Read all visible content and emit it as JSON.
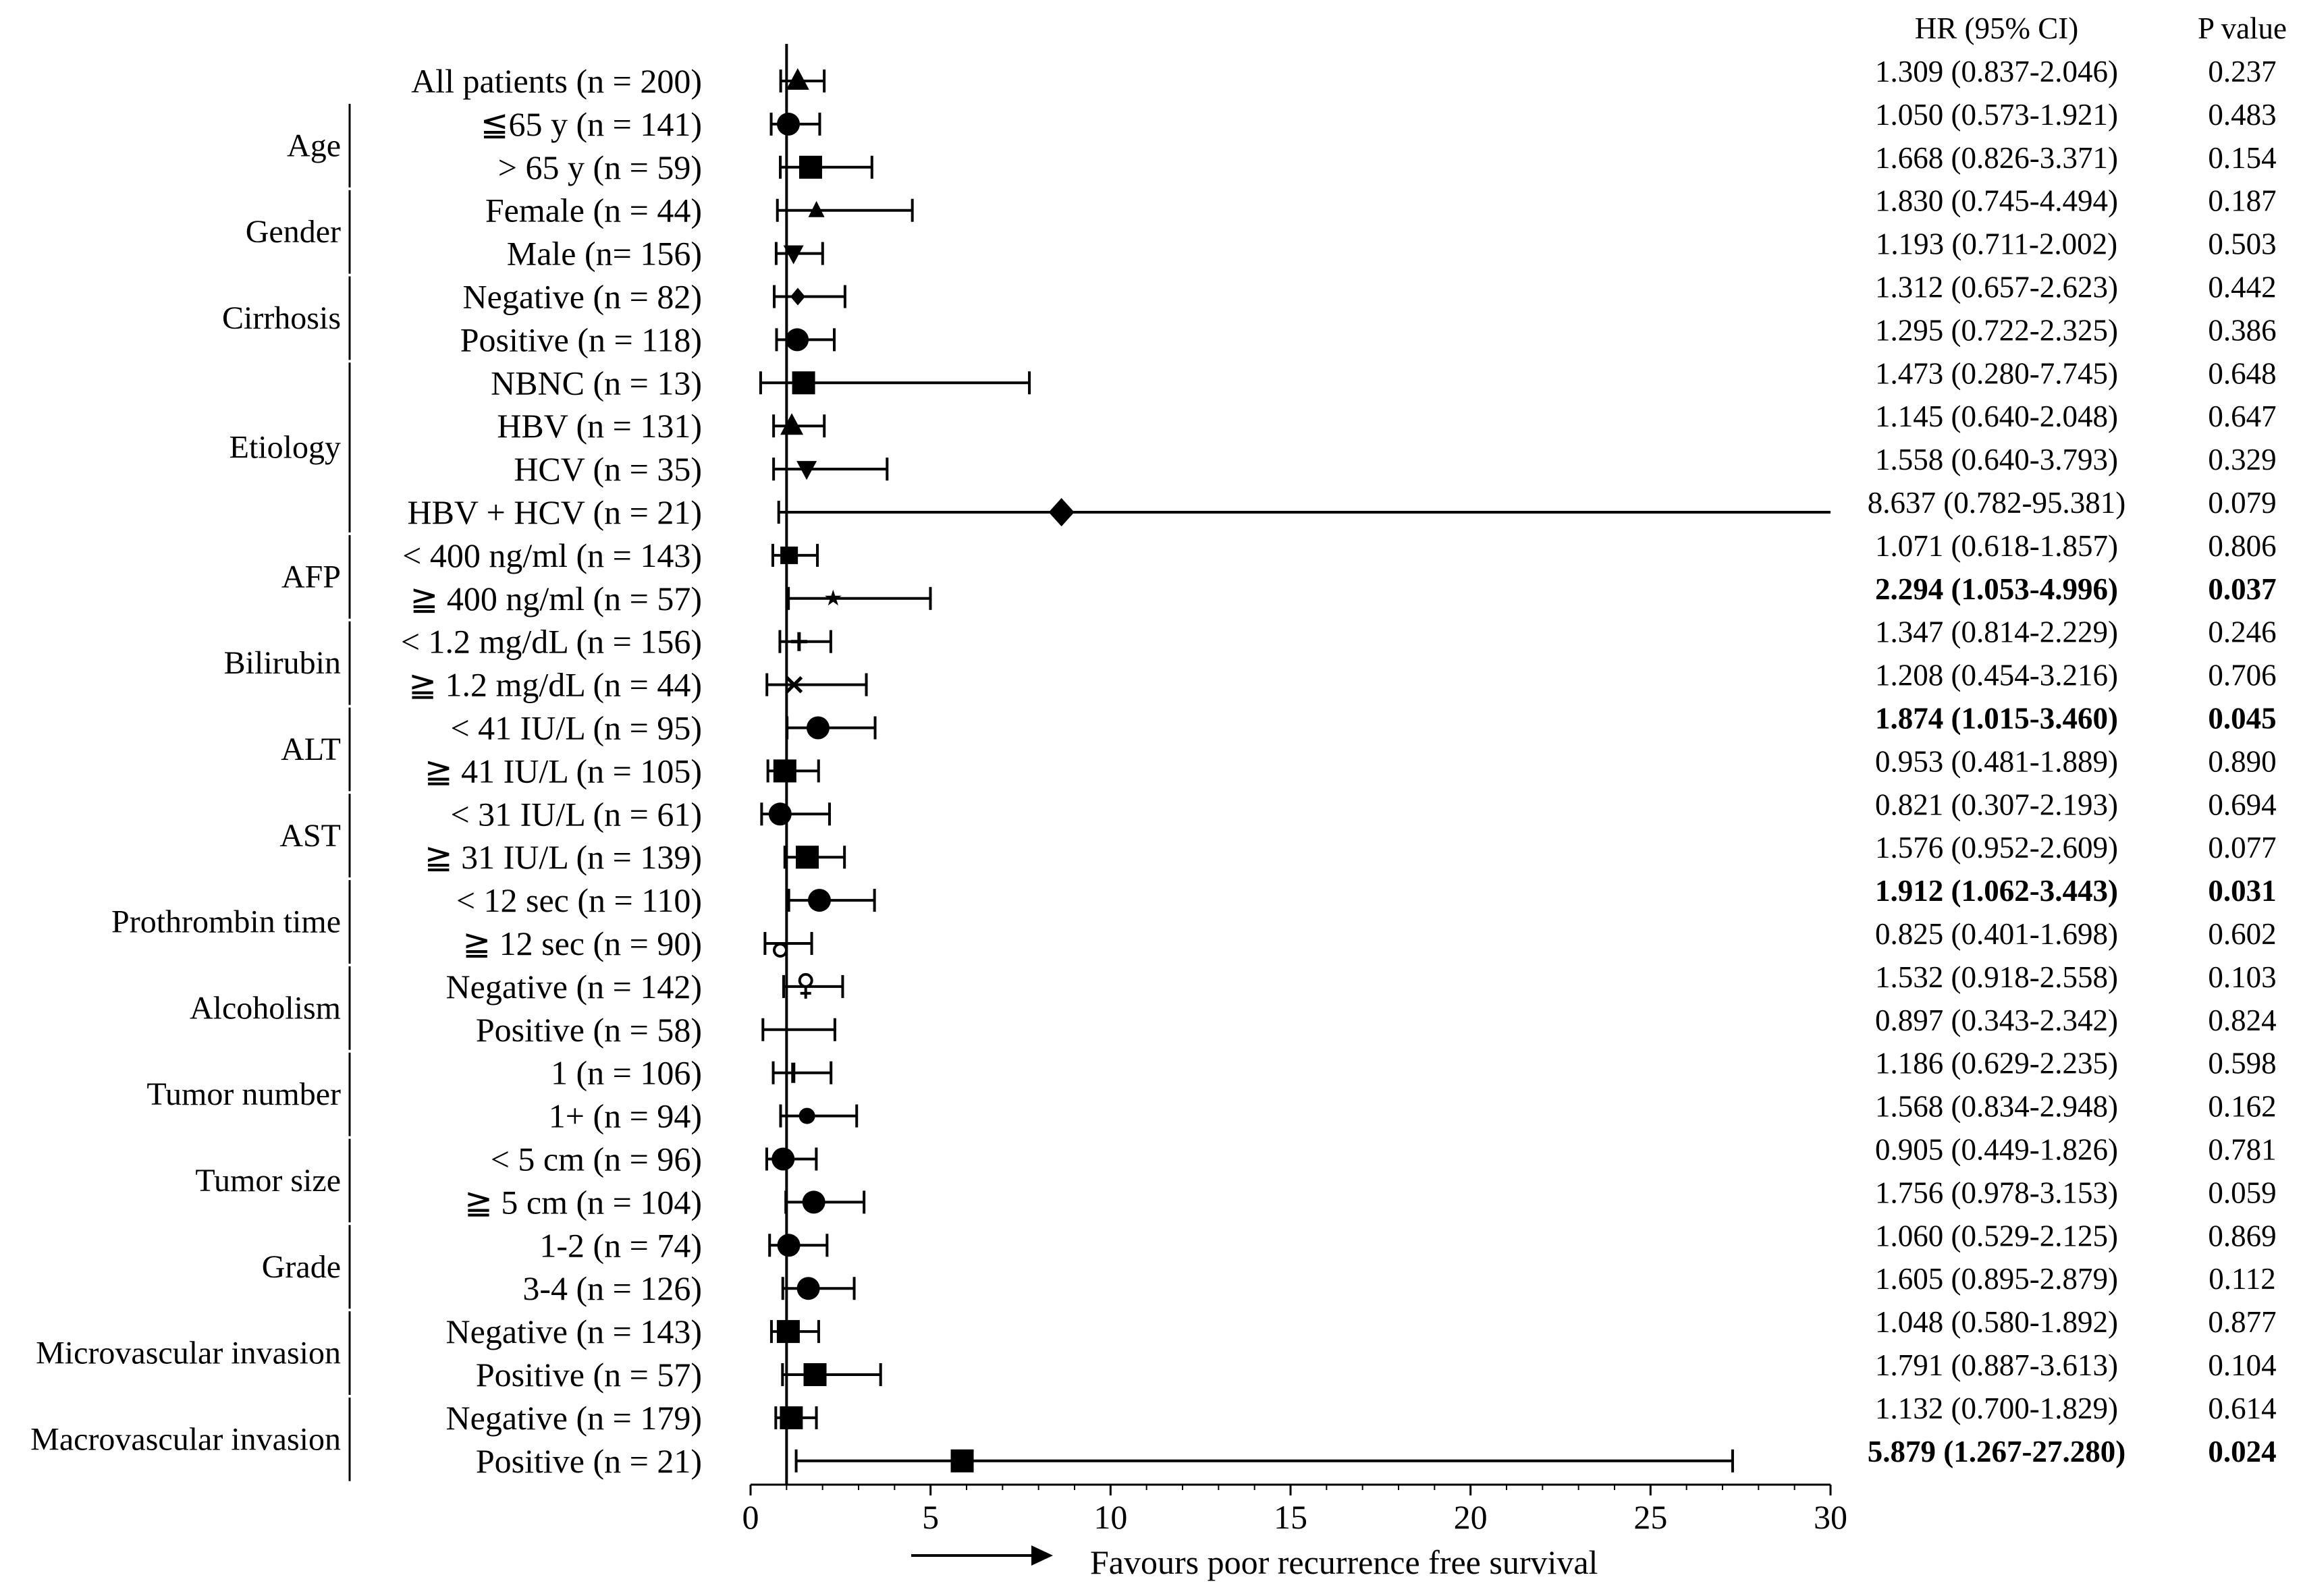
{
  "chart_data": {
    "type": "forest",
    "title": "",
    "xlabel": "Favours poor recurrence free survival",
    "xlim": [
      0,
      30
    ],
    "xticks": [
      0,
      5,
      10,
      15,
      20,
      25,
      30
    ],
    "reference_line": 1,
    "column_headers": {
      "hr": "HR (95% CI)",
      "p": "P value"
    },
    "groups": [
      {
        "name": "Age",
        "rows": [
          1,
          2
        ]
      },
      {
        "name": "Gender",
        "rows": [
          3,
          4
        ]
      },
      {
        "name": "Cirrhosis",
        "rows": [
          5,
          6
        ]
      },
      {
        "name": "Etiology",
        "rows": [
          7,
          8,
          9,
          10
        ]
      },
      {
        "name": "AFP",
        "rows": [
          11,
          12
        ]
      },
      {
        "name": "Bilirubin",
        "rows": [
          13,
          14
        ]
      },
      {
        "name": "ALT",
        "rows": [
          15,
          16
        ]
      },
      {
        "name": "AST",
        "rows": [
          17,
          18
        ]
      },
      {
        "name": "Prothrombin time",
        "rows": [
          19,
          20
        ]
      },
      {
        "name": "Alcoholism",
        "rows": [
          21,
          22
        ]
      },
      {
        "name": "Tumor number",
        "rows": [
          23,
          24
        ]
      },
      {
        "name": "Tumor size",
        "rows": [
          25,
          26
        ]
      },
      {
        "name": "Grade",
        "rows": [
          27,
          28
        ]
      },
      {
        "name": "Microvascular invasion",
        "rows": [
          29,
          30
        ]
      },
      {
        "name": "Macrovascular invasion",
        "rows": [
          31,
          32
        ]
      }
    ],
    "rows": [
      {
        "label": "All patients (n = 200)",
        "hr": 1.309,
        "lo": 0.837,
        "hi": 2.046,
        "hr_text": "1.309 (0.837-2.046)",
        "p": "0.237",
        "bold": false,
        "marker": "triangle"
      },
      {
        "label": "≦65 y (n = 141)",
        "hr": 1.05,
        "lo": 0.573,
        "hi": 1.921,
        "hr_text": "1.050 (0.573-1.921)",
        "p": "0.483",
        "bold": false,
        "marker": "circle"
      },
      {
        "label": "> 65 y (n = 59)",
        "hr": 1.668,
        "lo": 0.826,
        "hi": 3.371,
        "hr_text": "1.668 (0.826-3.371)",
        "p": "0.154",
        "bold": false,
        "marker": "square"
      },
      {
        "label": "Female (n = 44)",
        "hr": 1.83,
        "lo": 0.745,
        "hi": 4.494,
        "hr_text": "1.830 (0.745-4.494)",
        "p": "0.187",
        "bold": false,
        "marker": "triangle-small"
      },
      {
        "label": "Male (n= 156)",
        "hr": 1.193,
        "lo": 0.711,
        "hi": 2.002,
        "hr_text": "1.193 (0.711-2.002)",
        "p": "0.503",
        "bold": false,
        "marker": "triangle-down"
      },
      {
        "label": "Negative (n = 82)",
        "hr": 1.312,
        "lo": 0.657,
        "hi": 2.623,
        "hr_text": "1.312 (0.657-2.623)",
        "p": "0.442",
        "bold": false,
        "marker": "diamond-small"
      },
      {
        "label": "Positive (n = 118)",
        "hr": 1.295,
        "lo": 0.722,
        "hi": 2.325,
        "hr_text": "1.295 (0.722-2.325)",
        "p": "0.386",
        "bold": false,
        "marker": "circle"
      },
      {
        "label": "NBNC (n = 13)",
        "hr": 1.473,
        "lo": 0.28,
        "hi": 7.745,
        "hr_text": "1.473 (0.280-7.745)",
        "p": "0.648",
        "bold": false,
        "marker": "square"
      },
      {
        "label": "HBV (n = 131)",
        "hr": 1.145,
        "lo": 0.64,
        "hi": 2.048,
        "hr_text": "1.145 (0.640-2.048)",
        "p": "0.647",
        "bold": false,
        "marker": "triangle"
      },
      {
        "label": "HCV (n = 35)",
        "hr": 1.558,
        "lo": 0.64,
        "hi": 3.793,
        "hr_text": "1.558 (0.640-3.793)",
        "p": "0.329",
        "bold": false,
        "marker": "triangle-down"
      },
      {
        "label": "HBV + HCV (n = 21)",
        "hr": 8.637,
        "lo": 0.782,
        "hi": 95.381,
        "hr_text": "8.637 (0.782-95.381)",
        "p": "0.079",
        "bold": false,
        "marker": "diamond"
      },
      {
        "label": "< 400 ng/ml (n = 143)",
        "hr": 1.071,
        "lo": 0.618,
        "hi": 1.857,
        "hr_text": "1.071 (0.618-1.857)",
        "p": "0.806",
        "bold": false,
        "marker": "square-small"
      },
      {
        "label": "≧ 400 ng/ml (n = 57)",
        "hr": 2.294,
        "lo": 1.053,
        "hi": 4.996,
        "hr_text": "2.294 (1.053-4.996)",
        "p": "0.037",
        "bold": true,
        "marker": "star"
      },
      {
        "label": "< 1.2 mg/dL (n = 156)",
        "hr": 1.347,
        "lo": 0.814,
        "hi": 2.229,
        "hr_text": "1.347 (0.814-2.229)",
        "p": "0.246",
        "bold": false,
        "marker": "plus"
      },
      {
        "label": "≧ 1.2 mg/dL (n = 44)",
        "hr": 1.208,
        "lo": 0.454,
        "hi": 3.216,
        "hr_text": "1.208 (0.454-3.216)",
        "p": "0.706",
        "bold": false,
        "marker": "cross"
      },
      {
        "label": "< 41 IU/L (n = 95)",
        "hr": 1.874,
        "lo": 1.015,
        "hi": 3.46,
        "hr_text": "1.874 (1.015-3.460)",
        "p": "0.045",
        "bold": true,
        "marker": "circle"
      },
      {
        "label": "≧ 41 IU/L (n = 105)",
        "hr": 0.953,
        "lo": 0.481,
        "hi": 1.889,
        "hr_text": "0.953 (0.481-1.889)",
        "p": "0.890",
        "bold": false,
        "marker": "square"
      },
      {
        "label": "< 31 IU/L (n = 61)",
        "hr": 0.821,
        "lo": 0.307,
        "hi": 2.193,
        "hr_text": "0.821 (0.307-2.193)",
        "p": "0.694",
        "bold": false,
        "marker": "circle"
      },
      {
        "label": "≧ 31 IU/L (n = 139)",
        "hr": 1.576,
        "lo": 0.952,
        "hi": 2.609,
        "hr_text": "1.576 (0.952-2.609)",
        "p": "0.077",
        "bold": false,
        "marker": "square"
      },
      {
        "label": "< 12 sec (n = 110)",
        "hr": 1.912,
        "lo": 1.062,
        "hi": 3.443,
        "hr_text": "1.912 (1.062-3.443)",
        "p": "0.031",
        "bold": true,
        "marker": "circle"
      },
      {
        "label": "≧ 12 sec (n = 90)",
        "hr": 0.825,
        "lo": 0.401,
        "hi": 1.698,
        "hr_text": "0.825 (0.401-1.698)",
        "p": "0.602",
        "bold": false,
        "marker": "open-circle"
      },
      {
        "label": "Negative (n = 142)",
        "hr": 1.532,
        "lo": 0.918,
        "hi": 2.558,
        "hr_text": "1.532 (0.918-2.558)",
        "p": "0.103",
        "bold": false,
        "marker": "female"
      },
      {
        "label": "Positive (n = 58)",
        "hr": 0.897,
        "lo": 0.343,
        "hi": 2.342,
        "hr_text": "0.897 (0.343-2.342)",
        "p": "0.824",
        "bold": false,
        "marker": "none"
      },
      {
        "label": "1 (n = 106)",
        "hr": 1.186,
        "lo": 0.629,
        "hi": 2.235,
        "hr_text": "1.186 (0.629-2.235)",
        "p": "0.598",
        "bold": false,
        "marker": "bar"
      },
      {
        "label": "1+ (n = 94)",
        "hr": 1.568,
        "lo": 0.834,
        "hi": 2.948,
        "hr_text": "1.568 (0.834-2.948)",
        "p": "0.162",
        "bold": false,
        "marker": "circle-small"
      },
      {
        "label": "< 5 cm (n = 96)",
        "hr": 0.905,
        "lo": 0.449,
        "hi": 1.826,
        "hr_text": "0.905 (0.449-1.826)",
        "p": "0.781",
        "bold": false,
        "marker": "circle"
      },
      {
        "label": "≧ 5 cm (n = 104)",
        "hr": 1.756,
        "lo": 0.978,
        "hi": 3.153,
        "hr_text": "1.756 (0.978-3.153)",
        "p": "0.059",
        "bold": false,
        "marker": "circle"
      },
      {
        "label": "1-2 (n = 74)",
        "hr": 1.06,
        "lo": 0.529,
        "hi": 2.125,
        "hr_text": "1.060 (0.529-2.125)",
        "p": "0.869",
        "bold": false,
        "marker": "circle"
      },
      {
        "label": "3-4 (n = 126)",
        "hr": 1.605,
        "lo": 0.895,
        "hi": 2.879,
        "hr_text": "1.605 (0.895-2.879)",
        "p": "0.112",
        "bold": false,
        "marker": "circle"
      },
      {
        "label": "Negative (n = 143)",
        "hr": 1.048,
        "lo": 0.58,
        "hi": 1.892,
        "hr_text": "1.048 (0.580-1.892)",
        "p": "0.877",
        "bold": false,
        "marker": "square"
      },
      {
        "label": "Positive (n = 57)",
        "hr": 1.791,
        "lo": 0.887,
        "hi": 3.613,
        "hr_text": "1.791 (0.887-3.613)",
        "p": "0.104",
        "bold": false,
        "marker": "square"
      },
      {
        "label": "Negative (n = 179)",
        "hr": 1.132,
        "lo": 0.7,
        "hi": 1.829,
        "hr_text": "1.132 (0.700-1.829)",
        "p": "0.614",
        "bold": false,
        "marker": "square"
      },
      {
        "label": "Positive (n = 21)",
        "hr": 5.879,
        "lo": 1.267,
        "hi": 27.28,
        "hr_text": "5.879 (1.267-27.280)",
        "p": "0.024",
        "bold": true,
        "marker": "square"
      }
    ]
  }
}
